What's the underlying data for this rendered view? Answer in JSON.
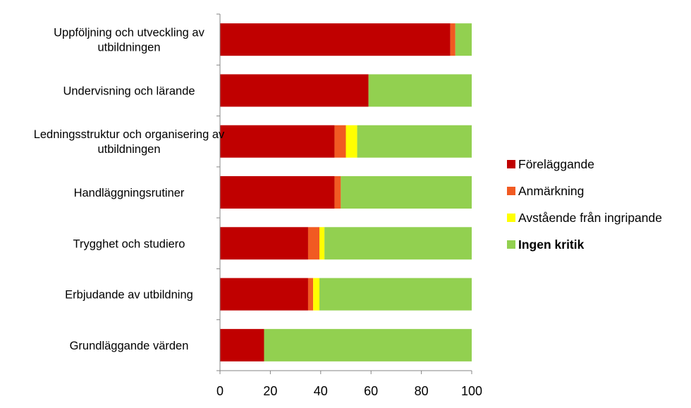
{
  "chart_data": {
    "type": "bar",
    "orientation": "horizontal",
    "stacked": true,
    "categories": [
      [
        "Uppföljning och utveckling av",
        "utbildningen"
      ],
      [
        "Undervisning och lärande"
      ],
      [
        "Ledningsstruktur och organisering av",
        "utbildningen"
      ],
      [
        "Handläggningsrutiner"
      ],
      [
        "Trygghet och studiero"
      ],
      [
        "Erbjudande av utbildning"
      ],
      [
        "Grundläggande värden"
      ]
    ],
    "series": [
      {
        "name": "Föreläggande",
        "color": "#c00000",
        "bold": false,
        "values": [
          91.5,
          59,
          45.5,
          45.5,
          35,
          35,
          17.5
        ]
      },
      {
        "name": "Anmärkning",
        "color": "#f15a22",
        "bold": false,
        "values": [
          2,
          0,
          4.5,
          2.5,
          4.5,
          2,
          0
        ]
      },
      {
        "name": "Avstående från ingripande",
        "color": "#ffff00",
        "bold": false,
        "values": [
          0,
          0,
          4.5,
          0,
          2,
          2.5,
          0
        ]
      },
      {
        "name": "Ingen kritik",
        "color": "#92d050",
        "bold": true,
        "values": [
          6.5,
          41,
          45.5,
          52,
          58.5,
          60.5,
          82.5
        ]
      }
    ],
    "xlim": [
      0,
      100
    ],
    "xticks": [
      0,
      20,
      40,
      60,
      80,
      100
    ],
    "title": "",
    "xlabel": "",
    "ylabel": "",
    "grid": false,
    "legend_position": "right"
  }
}
